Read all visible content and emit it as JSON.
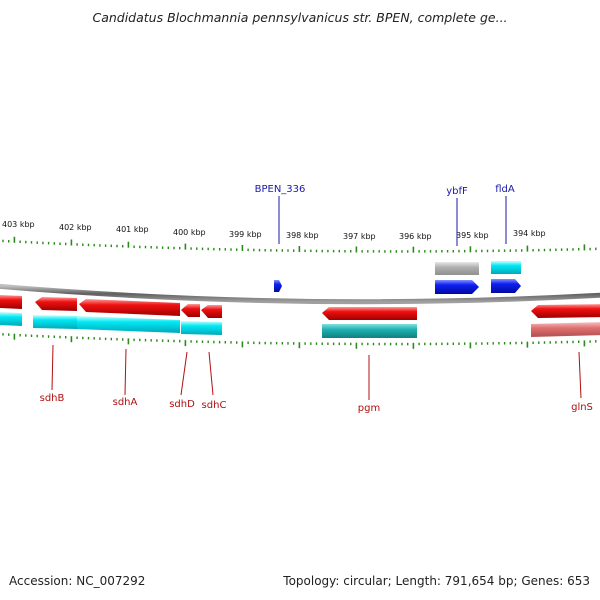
{
  "title": "Candidatus Blochmannia pennsylvanicus str. BPEN, complete ge...",
  "footer": {
    "accession": "Accession: NC_007292",
    "topology": "Topology: circular; Length: 791,654 bp; Genes: 653"
  },
  "ruler": {
    "labels": [
      "403 kbp",
      "402 kbp",
      "401 kbp",
      "400 kbp",
      "399 kbp",
      "398 kbp",
      "397 kbp",
      "396 kbp",
      "395 kbp",
      "394 kbp"
    ]
  },
  "genes_top": [
    "BPEN_336",
    "ybfF",
    "fldA"
  ],
  "genes_bottom": [
    "sdhB",
    "sdhA",
    "sdhD",
    "sdhC",
    "pgm",
    "glnS"
  ],
  "colors": {
    "forward_gene": "#1020e0",
    "forward_cds": "#00e0ee",
    "reverse_gene": "#e00000",
    "reverse_cds": "#00e0ee",
    "pseudo_gene": "#a8a8a8",
    "tick": "#2a8a1a",
    "label_top": "#1a1aa8",
    "label_bottom": "#b01010",
    "backbone": "#888888"
  }
}
